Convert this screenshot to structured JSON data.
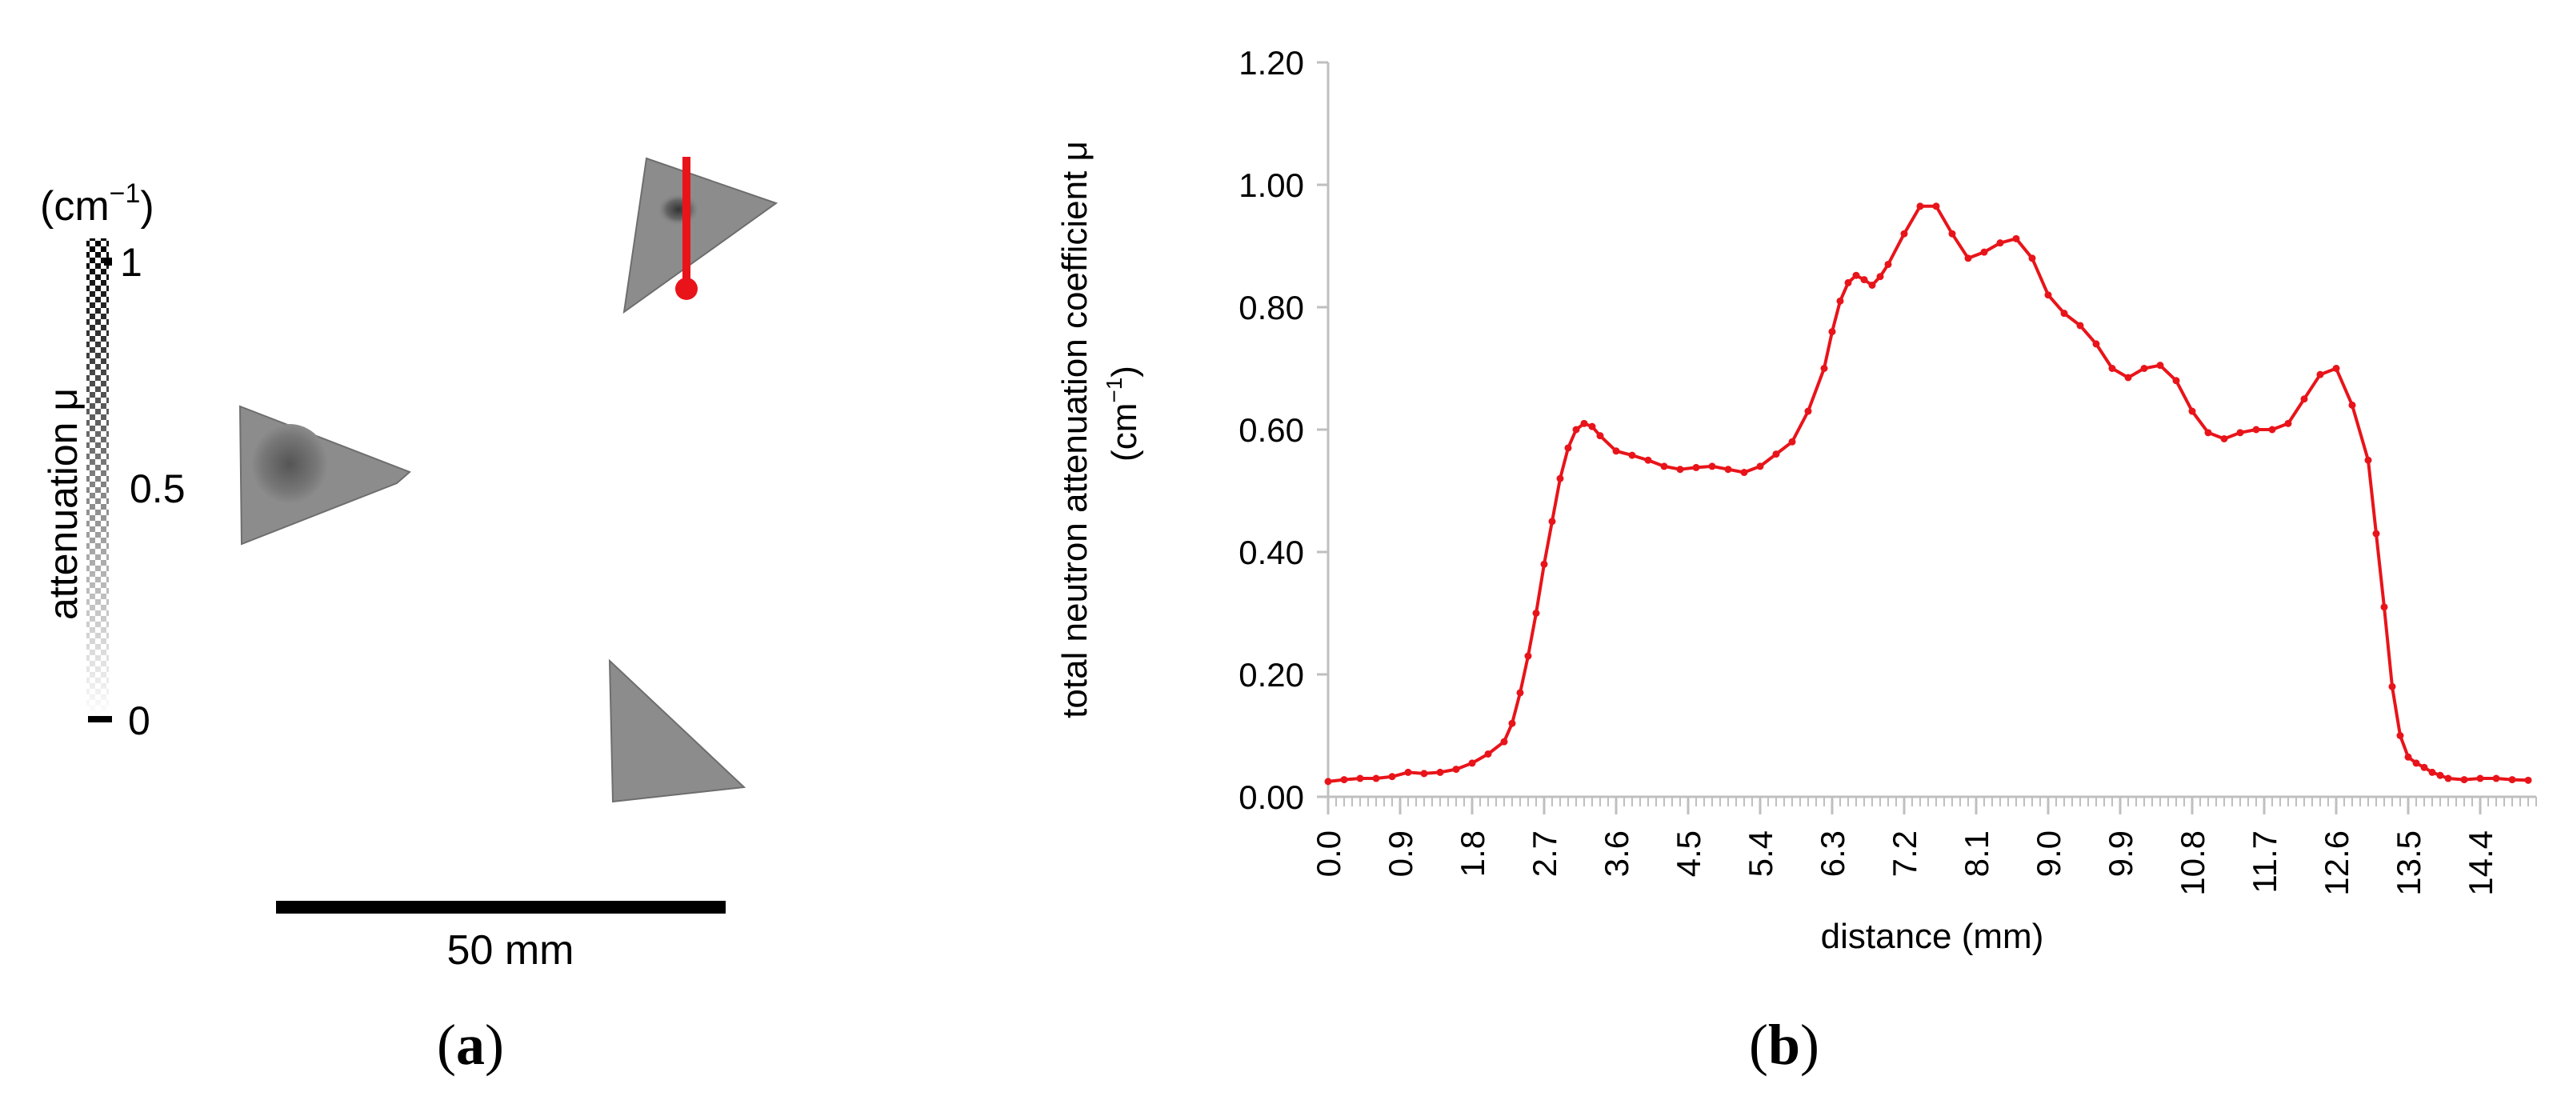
{
  "panel_a": {
    "caption_letter": "a",
    "colorbar": {
      "unit": "(cm",
      "unit_exp": "−1",
      "unit_close": ")",
      "title": "attenuation μ",
      "ticks": [
        "1",
        "0.5",
        "0"
      ],
      "tick_values": [
        1,
        0.5,
        0
      ]
    },
    "scale_bar_label": "50 mm",
    "profile_line_color": "#e8141a"
  },
  "panel_b": {
    "caption_letter": "b"
  },
  "chart_data": {
    "type": "line",
    "title": "",
    "xlabel": "distance (mm)",
    "ylabel": "total neutron attenuation coefficient μ",
    "ylabel_unit": "(cm",
    "ylabel_unit_exp": "−1",
    "ylabel_unit_close": ")",
    "xlim": [
      0,
      15.1
    ],
    "ylim": [
      0,
      1.2
    ],
    "x_ticks": [
      "0.0",
      "0.9",
      "1.8",
      "2.7",
      "3.6",
      "4.5",
      "5.4",
      "6.3",
      "7.2",
      "8.1",
      "9.0",
      "9.9",
      "10.8",
      "11.7",
      "12.6",
      "13.5",
      "14.4"
    ],
    "x_tick_values": [
      0,
      0.9,
      1.8,
      2.7,
      3.6,
      4.5,
      5.4,
      6.3,
      7.2,
      8.1,
      9.0,
      9.9,
      10.8,
      11.7,
      12.6,
      13.5,
      14.4
    ],
    "y_ticks": [
      "0.00",
      "0.20",
      "0.40",
      "0.60",
      "0.80",
      "1.00",
      "1.20"
    ],
    "y_tick_values": [
      0,
      0.2,
      0.4,
      0.6,
      0.8,
      1.0,
      1.2
    ],
    "color": "#e8141a",
    "grid": false,
    "series": [
      {
        "x": [
          0.0,
          0.2,
          0.4,
          0.6,
          0.8,
          1.0,
          1.2,
          1.4,
          1.6,
          1.8,
          2.0,
          2.2,
          2.3,
          2.4,
          2.5,
          2.6,
          2.7,
          2.8,
          2.9,
          3.0,
          3.1,
          3.2,
          3.3,
          3.4,
          3.6,
          3.8,
          4.0,
          4.2,
          4.4,
          4.6,
          4.8,
          5.0,
          5.2,
          5.4,
          5.6,
          5.8,
          6.0,
          6.2,
          6.3,
          6.4,
          6.5,
          6.6,
          6.7,
          6.8,
          6.9,
          7.0,
          7.2,
          7.4,
          7.6,
          7.8,
          8.0,
          8.2,
          8.4,
          8.6,
          8.8,
          9.0,
          9.2,
          9.4,
          9.6,
          9.8,
          10.0,
          10.2,
          10.4,
          10.6,
          10.8,
          11.0,
          11.2,
          11.4,
          11.6,
          11.8,
          12.0,
          12.2,
          12.4,
          12.6,
          12.8,
          13.0,
          13.1,
          13.2,
          13.3,
          13.4,
          13.5,
          13.6,
          13.7,
          13.8,
          13.9,
          14.0,
          14.2,
          14.4,
          14.6,
          14.8,
          15.0
        ],
        "values": [
          0.025,
          0.028,
          0.03,
          0.03,
          0.033,
          0.04,
          0.038,
          0.04,
          0.045,
          0.055,
          0.07,
          0.09,
          0.12,
          0.17,
          0.23,
          0.3,
          0.38,
          0.45,
          0.52,
          0.57,
          0.6,
          0.61,
          0.605,
          0.59,
          0.565,
          0.558,
          0.55,
          0.54,
          0.535,
          0.538,
          0.54,
          0.535,
          0.53,
          0.54,
          0.56,
          0.58,
          0.63,
          0.7,
          0.76,
          0.81,
          0.84,
          0.852,
          0.845,
          0.836,
          0.85,
          0.87,
          0.92,
          0.965,
          0.965,
          0.92,
          0.88,
          0.89,
          0.905,
          0.912,
          0.88,
          0.82,
          0.79,
          0.77,
          0.74,
          0.7,
          0.685,
          0.7,
          0.705,
          0.68,
          0.63,
          0.595,
          0.585,
          0.595,
          0.6,
          0.6,
          0.61,
          0.65,
          0.69,
          0.7,
          0.64,
          0.55,
          0.43,
          0.31,
          0.18,
          0.1,
          0.065,
          0.055,
          0.048,
          0.04,
          0.035,
          0.03,
          0.028,
          0.03,
          0.03,
          0.028,
          0.027
        ]
      }
    ]
  }
}
